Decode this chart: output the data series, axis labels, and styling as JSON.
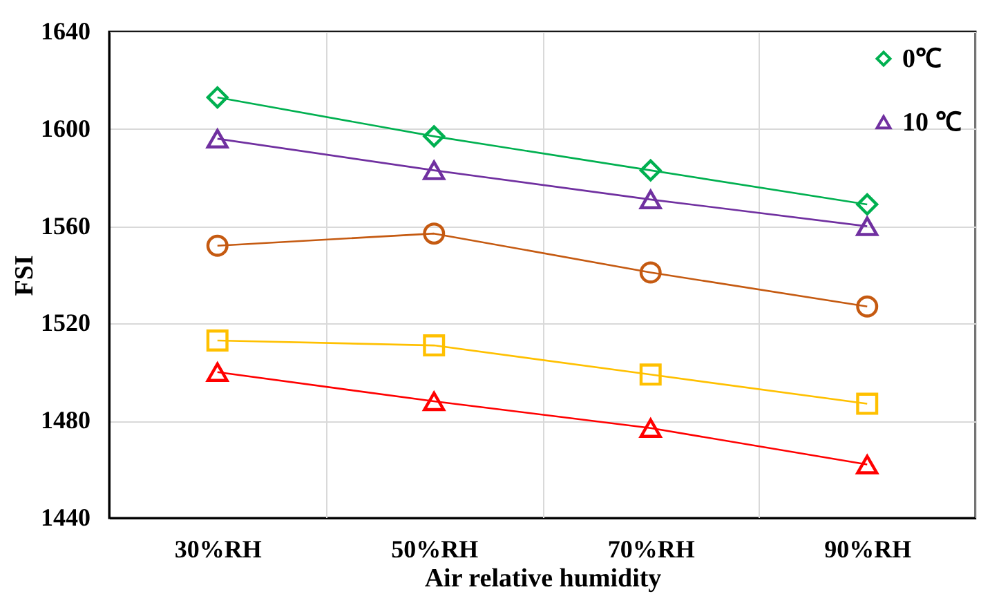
{
  "chart_data": {
    "type": "line",
    "xlabel": "Air relative humidity",
    "ylabel": "FSI",
    "categories": [
      "30%RH",
      "50%RH",
      "70%RH",
      "90%RH"
    ],
    "ylim": [
      1440,
      1640
    ],
    "yticks": [
      1440,
      1480,
      1520,
      1560,
      1600,
      1640
    ],
    "grid": true,
    "legend": "top right",
    "series": [
      {
        "name": "0℃",
        "color": "#00b050",
        "marker": "diamond",
        "values": [
          1613,
          1597,
          1583,
          1569
        ]
      },
      {
        "name": "10 ℃",
        "color": "#7030a0",
        "marker": "triangle",
        "values": [
          1596,
          1583,
          1571,
          1560
        ]
      },
      {
        "color": "#c55a11",
        "marker": "circle",
        "values": [
          1552,
          1557,
          1541,
          1527
        ]
      },
      {
        "color": "#ffc000",
        "marker": "square",
        "values": [
          1513,
          1511,
          1499,
          1487
        ]
      },
      {
        "color": "#ff0000",
        "marker": "triangle",
        "values": [
          1500,
          1488,
          1477,
          1462
        ]
      }
    ]
  }
}
